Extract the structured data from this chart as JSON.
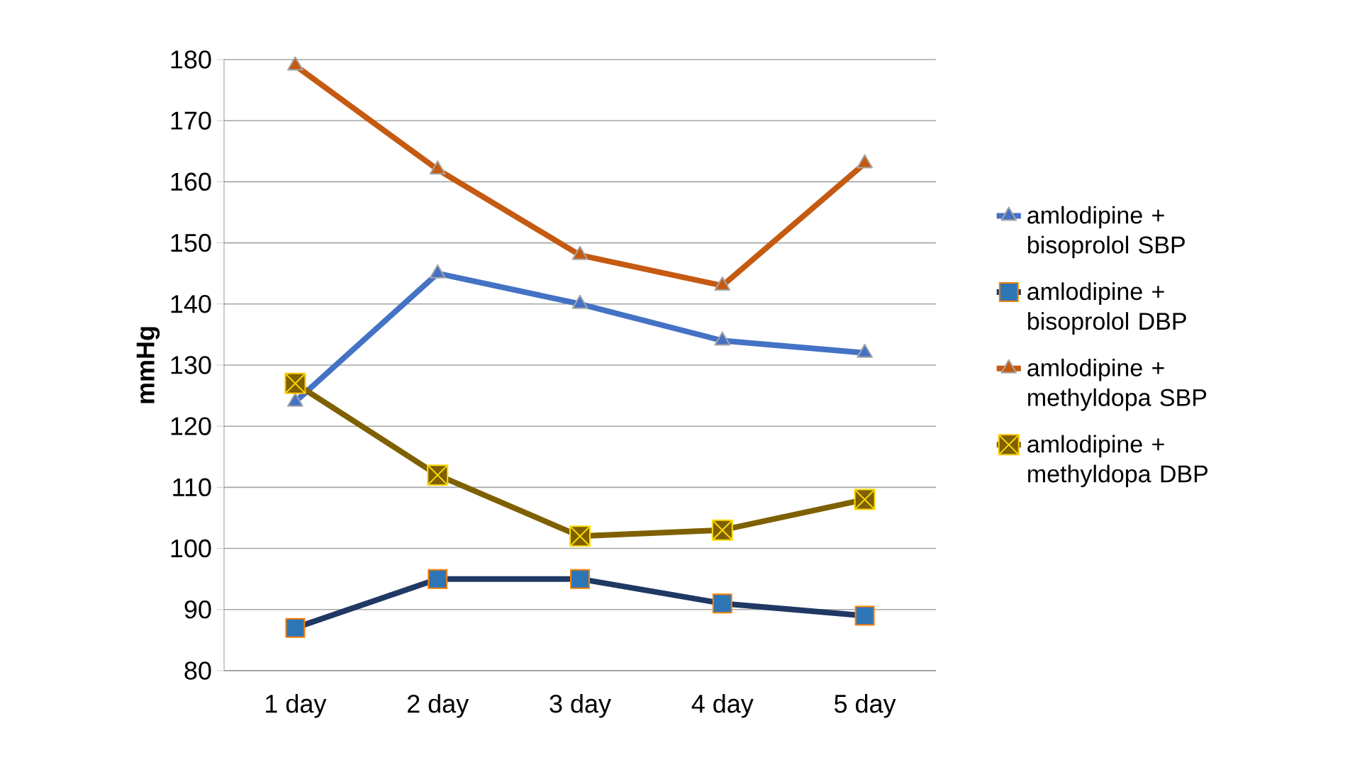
{
  "chart_data": {
    "type": "line",
    "ylabel": "mmHg",
    "categories": [
      "1 day",
      "2 day",
      "3 day",
      "4 day",
      "5 day"
    ],
    "series": [
      {
        "name": "amlodipine + bisoprolol SBP",
        "color": "#4472c4",
        "marker": "triangle",
        "values": [
          124,
          145,
          140,
          134,
          132
        ]
      },
      {
        "name": "amlodipine + bisoprolol DBP",
        "color": "#1f3864",
        "marker": "square",
        "values": [
          87,
          95,
          95,
          91,
          89
        ]
      },
      {
        "name": "amlodipine + methyldopa SBP",
        "color": "#c55a11",
        "marker": "triangle",
        "values": [
          179,
          162,
          148,
          143,
          163
        ]
      },
      {
        "name": "amlodipine + methyldopa DBP",
        "color": "#7f6000",
        "marker": "square",
        "values": [
          127,
          112,
          102,
          103,
          108
        ]
      }
    ],
    "ylim": [
      80,
      180
    ],
    "yticks": [
      80,
      90,
      100,
      110,
      120,
      130,
      140,
      150,
      160,
      170,
      180
    ],
    "grid": "y",
    "legend": "right"
  }
}
